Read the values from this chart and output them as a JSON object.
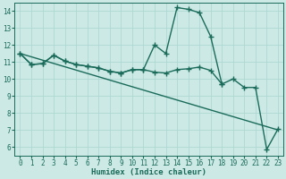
{
  "line1_x": [
    0,
    1,
    2,
    3,
    4,
    5,
    6,
    7,
    8,
    9,
    10,
    11,
    12,
    13,
    14,
    15,
    16,
    17,
    18,
    19,
    20,
    21,
    22,
    23
  ],
  "line1_y": [
    11.5,
    10.85,
    10.9,
    11.4,
    11.05,
    10.85,
    10.75,
    10.65,
    10.45,
    10.35,
    10.55,
    10.55,
    12.0,
    11.5,
    14.2,
    14.1,
    13.9,
    12.5,
    9.7,
    10.0,
    9.5,
    9.5,
    5.85,
    7.05
  ],
  "line2_x": [
    0,
    1,
    2,
    3,
    4,
    5,
    6,
    7,
    8,
    9,
    10,
    11,
    12,
    13,
    14,
    15,
    16,
    17,
    18
  ],
  "line2_y": [
    11.5,
    10.85,
    10.9,
    11.4,
    11.05,
    10.85,
    10.75,
    10.65,
    10.45,
    10.35,
    10.55,
    10.55,
    10.4,
    10.35,
    10.55,
    10.6,
    10.7,
    10.5,
    9.7
  ],
  "line3_x": [
    0,
    23
  ],
  "line3_y": [
    11.5,
    7.0
  ],
  "color": "#1a6b5a",
  "bg_color": "#cce9e5",
  "grid_color": "#a8d5d0",
  "xlabel": "Humidex (Indice chaleur)",
  "xlim": [
    -0.5,
    23.5
  ],
  "ylim": [
    5.5,
    14.5
  ],
  "yticks": [
    6,
    7,
    8,
    9,
    10,
    11,
    12,
    13,
    14
  ],
  "xticks": [
    0,
    1,
    2,
    3,
    4,
    5,
    6,
    7,
    8,
    9,
    10,
    11,
    12,
    13,
    14,
    15,
    16,
    17,
    18,
    19,
    20,
    21,
    22,
    23
  ],
  "marker": "+",
  "linewidth": 1.0,
  "markersize": 4
}
